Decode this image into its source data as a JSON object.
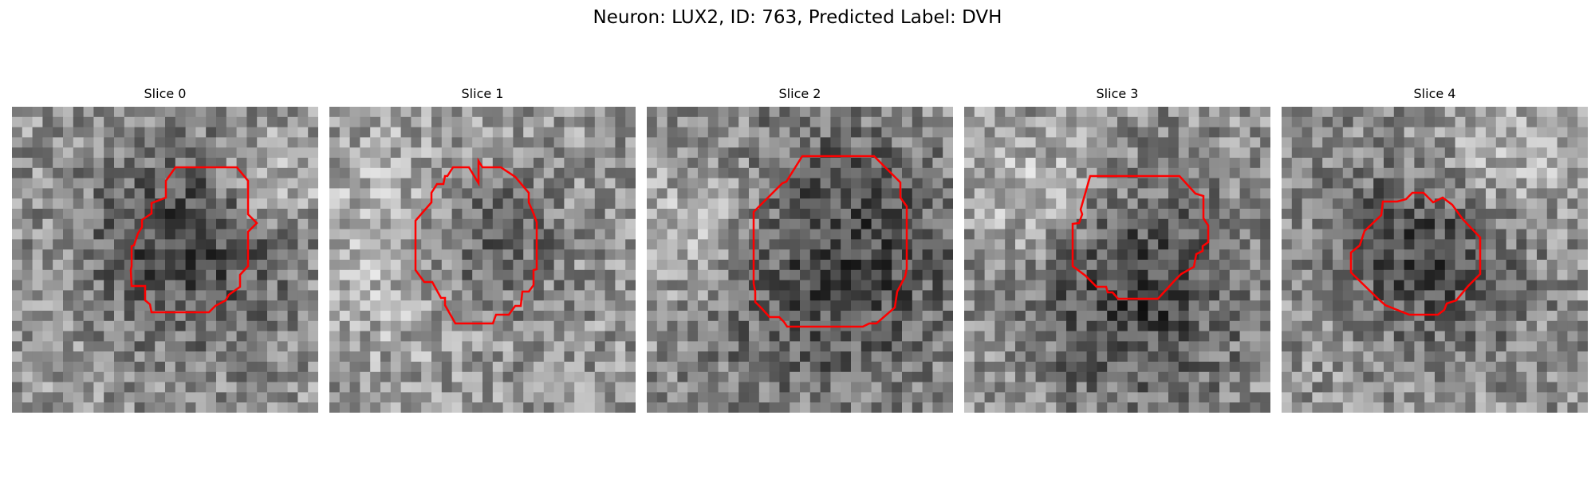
{
  "figure": {
    "title": "Neuron: LUX2, ID: 763, Predicted Label: DVH"
  },
  "panels": [
    {
      "title": "Slice 0",
      "seed": 11,
      "dark_spot": [
        0.58,
        0.45,
        0.4
      ],
      "bright_spot": [
        0.85,
        0.25,
        0.2
      ]
    },
    {
      "title": "Slice 1",
      "seed": 23,
      "dark_spot": [
        0.5,
        0.45,
        0.3
      ],
      "bright_spot": [
        0.3,
        0.45,
        0.4
      ]
    },
    {
      "title": "Slice 2",
      "seed": 37,
      "dark_spot": [
        0.6,
        0.5,
        0.55
      ],
      "bright_spot": [
        0.2,
        0.4,
        0.3
      ]
    },
    {
      "title": "Slice 3",
      "seed": 41,
      "dark_spot": [
        0.55,
        0.6,
        0.45
      ],
      "bright_spot": [
        0.25,
        0.3,
        0.25
      ]
    },
    {
      "title": "Slice 4",
      "seed": 53,
      "dark_spot": [
        0.5,
        0.45,
        0.4
      ],
      "bright_spot": [
        0.7,
        0.2,
        0.3
      ]
    }
  ],
  "style": {
    "contour_color": "#ff0000"
  }
}
